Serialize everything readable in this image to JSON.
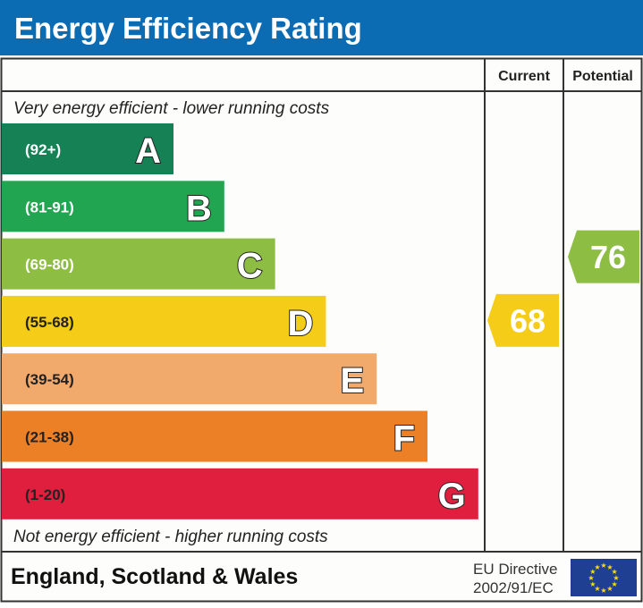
{
  "title": "Energy Efficiency Rating",
  "columns": {
    "current": "Current",
    "potential": "Potential"
  },
  "top_note": "Very energy efficient - lower running costs",
  "bottom_note": "Not energy efficient - higher running costs",
  "footer": {
    "region": "England, Scotland & Wales",
    "directive_line1": "EU Directive",
    "directive_line2": "2002/91/EC",
    "flag": "eu-flag-icon"
  },
  "colors": {
    "header": "#0b6bb3"
  },
  "chart_data": {
    "type": "bar",
    "bands": [
      {
        "letter": "A",
        "range": "(92+)",
        "color": "#178156"
      },
      {
        "letter": "B",
        "range": "(81-91)",
        "color": "#22a550"
      },
      {
        "letter": "C",
        "range": "(69-80)",
        "color": "#8dbd42"
      },
      {
        "letter": "D",
        "range": "(55-68)",
        "color": "#f5cc17"
      },
      {
        "letter": "E",
        "range": "(39-54)",
        "color": "#f2a96c"
      },
      {
        "letter": "F",
        "range": "(21-38)",
        "color": "#ec8027"
      },
      {
        "letter": "G",
        "range": "(1-20)",
        "color": "#e01f3e"
      }
    ],
    "current": {
      "value": 68,
      "band": "D",
      "color": "#f5cc17"
    },
    "potential": {
      "value": 76,
      "band": "C",
      "color": "#8dbd42"
    }
  }
}
